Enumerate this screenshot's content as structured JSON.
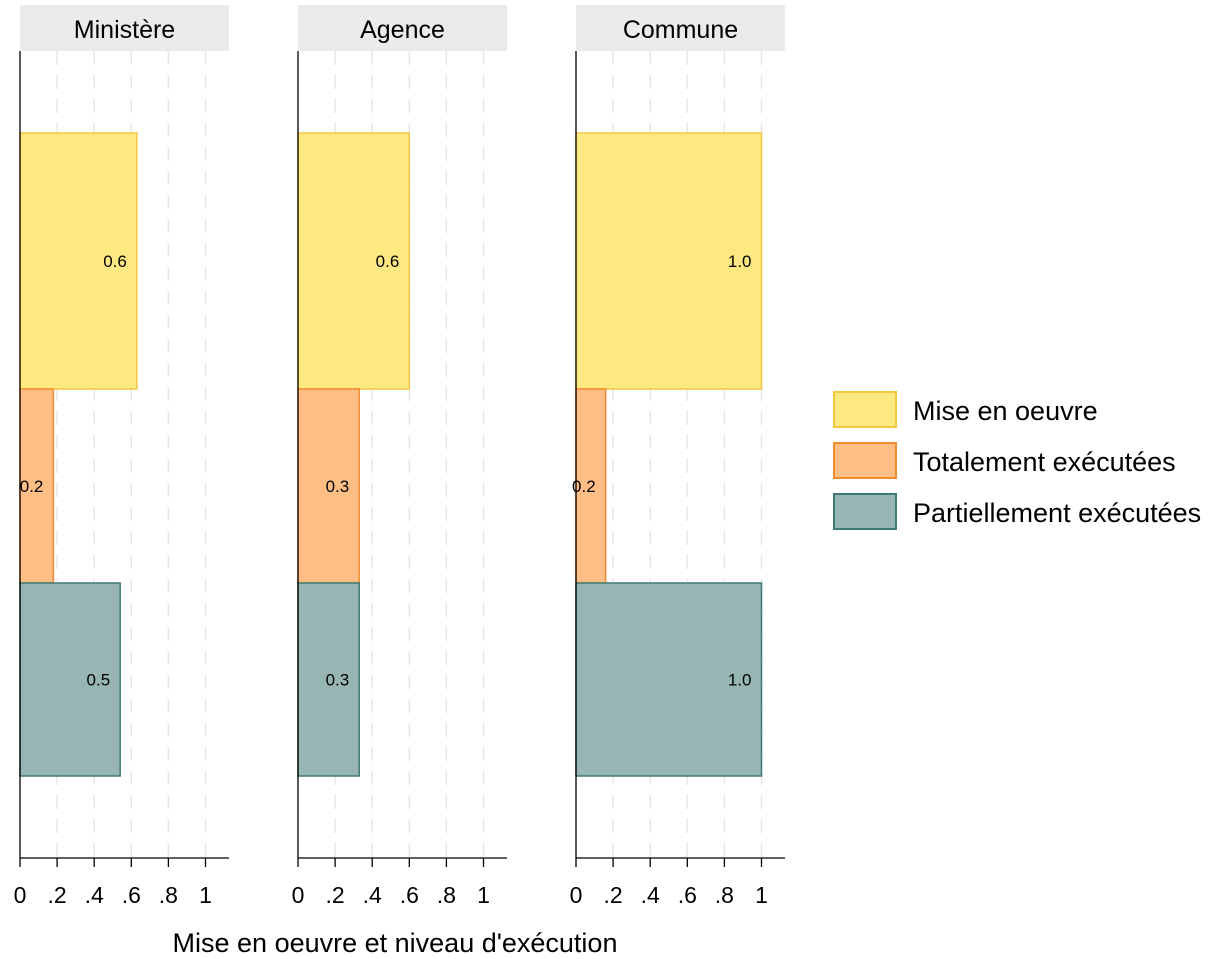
{
  "chart_data": {
    "type": "bar",
    "orientation": "horizontal",
    "facets": [
      "Ministère",
      "Agence",
      "Commune"
    ],
    "series": [
      {
        "name": "Mise en oeuvre",
        "values": [
          0.63,
          0.6,
          1.0
        ],
        "labels": [
          "0.6",
          "0.6",
          "1.0"
        ],
        "color": "#fde881",
        "border": "#f2c744"
      },
      {
        "name": "Totalement exécutées",
        "values": [
          0.18,
          0.33,
          0.16
        ],
        "labels": [
          "0.2",
          "0.3",
          "0.2"
        ],
        "color": "#ffbe85",
        "border": "#f28c30"
      },
      {
        "name": "Partiellement exécutées",
        "values": [
          0.54,
          0.33,
          1.0
        ],
        "labels": [
          "0.5",
          "0.3",
          "1.0"
        ],
        "color": "#97b5b2",
        "border": "#3f7a72"
      }
    ],
    "x_ticks": [
      0,
      0.2,
      0.4,
      0.6,
      0.8,
      1
    ],
    "x_tick_labels": [
      "0",
      ".2",
      ".4",
      ".6",
      ".8",
      "1"
    ],
    "xlim": [
      0,
      1.13
    ],
    "xlabel": "Mise en oeuvre et niveau d'exécution",
    "grid": true,
    "legend_position": "right"
  }
}
